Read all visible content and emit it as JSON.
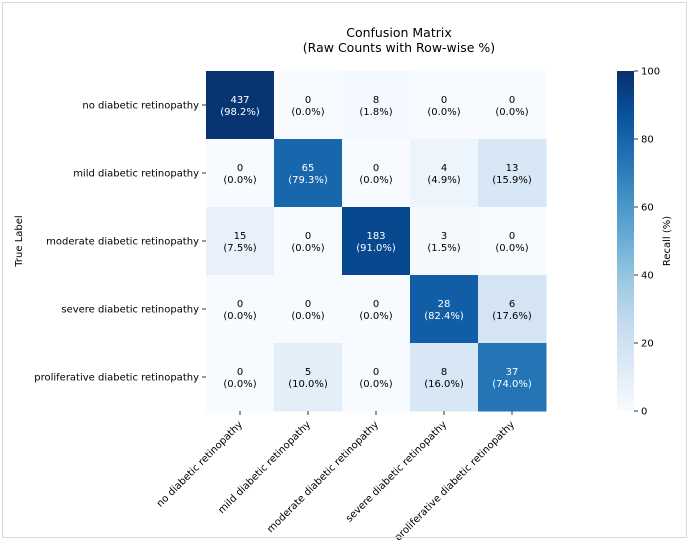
{
  "chart_data": {
    "type": "heatmap",
    "title": "Confusion Matrix",
    "subtitle": "(Raw Counts with Row-wise %)",
    "ylabel": "True Label",
    "xlabel": "",
    "row_labels": [
      "no diabetic retinopathy",
      "mild diabetic retinopathy",
      "moderate diabetic retinopathy",
      "severe diabetic retinopathy",
      "proliferative diabetic retinopathy"
    ],
    "col_labels": [
      "no diabetic retinopathy",
      "mild diabetic retinopathy",
      "moderate diabetic retinopathy",
      "severe diabetic retinopathy",
      "proliferative diabetic retinopathy"
    ],
    "counts": [
      [
        437,
        0,
        8,
        0,
        0
      ],
      [
        0,
        65,
        0,
        4,
        13
      ],
      [
        15,
        0,
        183,
        3,
        0
      ],
      [
        0,
        0,
        0,
        28,
        6
      ],
      [
        0,
        5,
        0,
        8,
        37
      ]
    ],
    "percent_labels": [
      [
        "(98.2%)",
        "(0.0%)",
        "(1.8%)",
        "(0.0%)",
        "(0.0%)"
      ],
      [
        "(0.0%)",
        "(79.3%)",
        "(0.0%)",
        "(4.9%)",
        "(15.9%)"
      ],
      [
        "(7.5%)",
        "(0.0%)",
        "(91.0%)",
        "(1.5%)",
        "(0.0%)"
      ],
      [
        "(0.0%)",
        "(0.0%)",
        "(0.0%)",
        "(82.4%)",
        "(17.6%)"
      ],
      [
        "(0.0%)",
        "(10.0%)",
        "(0.0%)",
        "(16.0%)",
        "(74.0%)"
      ]
    ],
    "recall_percent": [
      [
        98.2,
        0.0,
        1.8,
        0.0,
        0.0
      ],
      [
        0.0,
        79.3,
        0.0,
        4.9,
        15.9
      ],
      [
        7.5,
        0.0,
        91.0,
        1.5,
        0.0
      ],
      [
        0.0,
        0.0,
        0.0,
        82.4,
        17.6
      ],
      [
        0.0,
        10.0,
        0.0,
        16.0,
        74.0
      ]
    ],
    "colorbar": {
      "label": "Recall (%)",
      "range": [
        0,
        100
      ],
      "ticks": [
        "0",
        "20",
        "40",
        "60",
        "80",
        "100"
      ],
      "colormap": "Blues"
    },
    "grid": false
  }
}
